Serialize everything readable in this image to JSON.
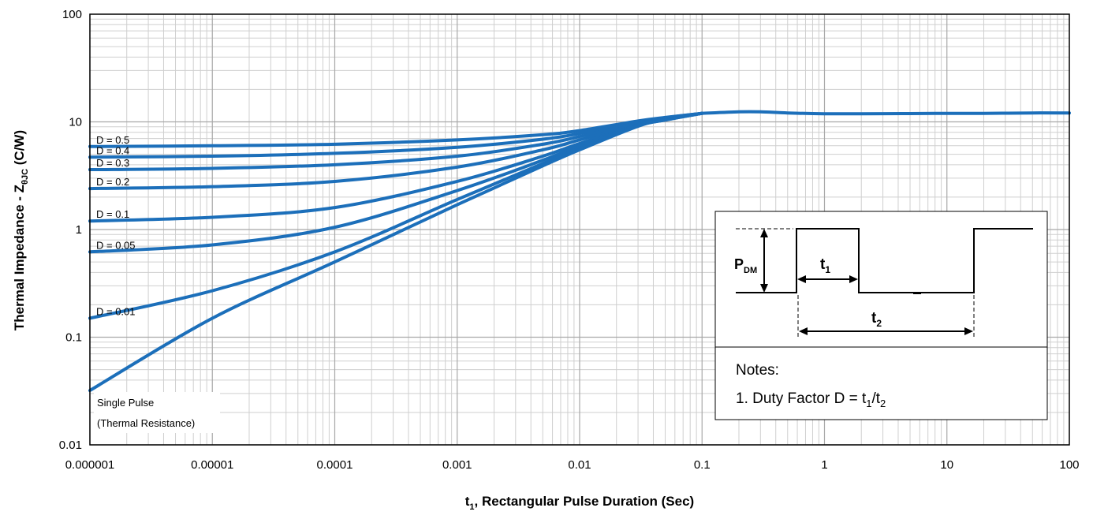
{
  "chart_data": {
    "type": "line",
    "xlabel": {
      "main": "t",
      "sub": "1",
      "rest": ", Rectangular Pulse Duration (Sec)"
    },
    "ylabel": {
      "main": "Thermal Impedance - Z",
      "sub": "θJC",
      "rest": " (C/W)"
    },
    "x_scale": "log",
    "y_scale": "log",
    "xlim": [
      1e-06,
      100
    ],
    "ylim": [
      0.01,
      100
    ],
    "grid": true,
    "x_ticks": [
      {
        "value": 1e-06,
        "label": "0.000001"
      },
      {
        "value": 1e-05,
        "label": "0.00001"
      },
      {
        "value": 0.0001,
        "label": "0.0001"
      },
      {
        "value": 0.001,
        "label": "0.001"
      },
      {
        "value": 0.01,
        "label": "0.01"
      },
      {
        "value": 0.1,
        "label": "0.1"
      },
      {
        "value": 1,
        "label": "1"
      },
      {
        "value": 10,
        "label": "10"
      },
      {
        "value": 100,
        "label": "100"
      }
    ],
    "y_ticks": [
      {
        "value": 0.01,
        "label": "0.01"
      },
      {
        "value": 0.1,
        "label": "0.1"
      },
      {
        "value": 1,
        "label": "1"
      },
      {
        "value": 10,
        "label": "10"
      },
      {
        "value": 100,
        "label": "100"
      }
    ],
    "line_color": "#1c6fba",
    "series": [
      {
        "name": "D = 0.5",
        "x": [
          1e-06,
          1e-05,
          0.0001,
          0.001,
          0.005,
          0.01,
          0.03,
          0.05,
          0.1
        ],
        "y": [
          5.9,
          6.0,
          6.2,
          6.8,
          7.6,
          8.3,
          10.2,
          11.0,
          12.0
        ]
      },
      {
        "name": "D = 0.4",
        "x": [
          1e-06,
          1e-05,
          0.0001,
          0.001,
          0.005,
          0.01,
          0.03,
          0.05,
          0.1
        ],
        "y": [
          4.7,
          4.8,
          5.1,
          5.8,
          6.9,
          7.8,
          10.0,
          10.9,
          12.0
        ]
      },
      {
        "name": "D = 0.3",
        "x": [
          1e-06,
          1e-05,
          0.0001,
          0.001,
          0.005,
          0.01,
          0.03,
          0.05,
          0.1
        ],
        "y": [
          3.6,
          3.7,
          4.0,
          4.8,
          6.2,
          7.3,
          9.8,
          10.8,
          12.0
        ]
      },
      {
        "name": "D = 0.2",
        "x": [
          1e-06,
          1e-05,
          0.0001,
          0.001,
          0.005,
          0.01,
          0.03,
          0.05,
          0.1
        ],
        "y": [
          2.4,
          2.5,
          2.8,
          3.8,
          5.5,
          6.8,
          9.6,
          10.7,
          12.0
        ]
      },
      {
        "name": "D = 0.1",
        "x": [
          1e-06,
          1e-05,
          0.0001,
          0.001,
          0.005,
          0.01,
          0.03,
          0.05,
          0.1
        ],
        "y": [
          1.2,
          1.3,
          1.6,
          2.8,
          4.8,
          6.3,
          9.4,
          10.6,
          12.0
        ]
      },
      {
        "name": "D = 0.05",
        "x": [
          1e-06,
          1e-05,
          0.0001,
          0.001,
          0.005,
          0.01,
          0.03,
          0.05,
          0.1
        ],
        "y": [
          0.62,
          0.72,
          1.05,
          2.3,
          4.4,
          6.0,
          9.3,
          10.5,
          12.0
        ]
      },
      {
        "name": "D = 0.01",
        "x": [
          1e-06,
          1e-05,
          0.0001,
          0.001,
          0.005,
          0.01,
          0.03,
          0.05,
          0.1
        ],
        "y": [
          0.15,
          0.27,
          0.62,
          1.9,
          4.1,
          5.7,
          9.2,
          10.4,
          12.0
        ]
      },
      {
        "name": "Single Pulse",
        "x": [
          1e-06,
          1e-05,
          0.0001,
          0.001,
          0.005,
          0.01,
          0.03,
          0.05,
          0.1
        ],
        "y": [
          0.032,
          0.15,
          0.5,
          1.7,
          3.9,
          5.5,
          9.1,
          10.4,
          12.0
        ]
      },
      {
        "name": "",
        "x": [
          0.1,
          0.2,
          0.3,
          0.5,
          1,
          2,
          5,
          10,
          20,
          50,
          100
        ],
        "y": [
          12.0,
          12.4,
          12.4,
          12.1,
          11.9,
          11.9,
          11.95,
          12.0,
          12.0,
          12.1,
          12.1
        ]
      }
    ],
    "annotations": {
      "single_pulse": [
        "Single Pulse",
        "(Thermal Resistance)"
      ]
    },
    "inset": {
      "pdm_main": "P",
      "pdm_sub": "DM",
      "t1_main": "t",
      "t1_sub": "1",
      "t2_main": "t",
      "t2_sub": "2",
      "notes_title": "Notes:",
      "note_prefix": "1. Duty Factor D = t",
      "note_sub1": "1",
      "note_mid": "/t",
      "note_sub2": "2"
    }
  }
}
